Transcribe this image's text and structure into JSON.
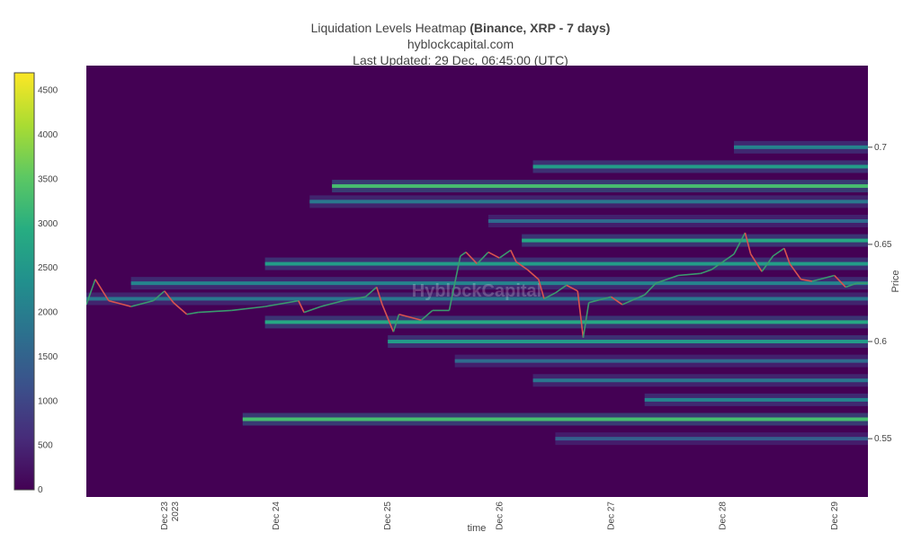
{
  "header": {
    "title_prefix": "Liquidation Levels Heatmap ",
    "title_bold": "(Binance, XRP - 7 days)",
    "subtitle": "hyblockcapital.com",
    "last_updated": "Last Updated: 29 Dec, 06:45:00 (UTC)"
  },
  "watermark": "HyblockCapital",
  "colors": {
    "background": "#440154",
    "colorscale": [
      "#440154",
      "#472c7a",
      "#3b518b",
      "#2c718e",
      "#21908d",
      "#27ad81",
      "#5cc863",
      "#aadc32",
      "#fde725"
    ],
    "price_up": "#3a9a6e",
    "price_down": "#d9534f"
  },
  "chart_data": {
    "type": "heatmap",
    "xlabel": "time",
    "ylabel": "Price",
    "x_ticks": [
      {
        "label": "Dec 23",
        "sub": "2023",
        "t": 0.7
      },
      {
        "label": "Dec 24",
        "sub": "",
        "t": 1.7
      },
      {
        "label": "Dec 25",
        "sub": "",
        "t": 2.7
      },
      {
        "label": "Dec 26",
        "sub": "",
        "t": 3.7
      },
      {
        "label": "Dec 27",
        "sub": "",
        "t": 4.7
      },
      {
        "label": "Dec 28",
        "sub": "",
        "t": 5.7
      },
      {
        "label": "Dec 29",
        "sub": "",
        "t": 6.7
      }
    ],
    "x_range": [
      0,
      7.0
    ],
    "y_ticks": [
      0.55,
      0.6,
      0.65,
      0.7
    ],
    "y_range": [
      0.52,
      0.742
    ],
    "colorbar": {
      "min": 0,
      "max": 4700,
      "ticks": [
        0,
        500,
        1000,
        1500,
        2000,
        2500,
        3000,
        3500,
        4000,
        4500
      ]
    },
    "price_series": [
      [
        0.0,
        0.619
      ],
      [
        0.08,
        0.632
      ],
      [
        0.2,
        0.621
      ],
      [
        0.4,
        0.618
      ],
      [
        0.6,
        0.621
      ],
      [
        0.7,
        0.626
      ],
      [
        0.78,
        0.62
      ],
      [
        0.9,
        0.614
      ],
      [
        1.0,
        0.615
      ],
      [
        1.3,
        0.616
      ],
      [
        1.6,
        0.618
      ],
      [
        1.9,
        0.621
      ],
      [
        1.95,
        0.615
      ],
      [
        2.1,
        0.618
      ],
      [
        2.3,
        0.621
      ],
      [
        2.5,
        0.623
      ],
      [
        2.6,
        0.628
      ],
      [
        2.65,
        0.619
      ],
      [
        2.75,
        0.605
      ],
      [
        2.8,
        0.614
      ],
      [
        3.0,
        0.611
      ],
      [
        3.1,
        0.616
      ],
      [
        3.25,
        0.616
      ],
      [
        3.3,
        0.63
      ],
      [
        3.35,
        0.644
      ],
      [
        3.4,
        0.646
      ],
      [
        3.5,
        0.64
      ],
      [
        3.6,
        0.646
      ],
      [
        3.7,
        0.643
      ],
      [
        3.8,
        0.647
      ],
      [
        3.85,
        0.641
      ],
      [
        3.95,
        0.637
      ],
      [
        4.05,
        0.632
      ],
      [
        4.1,
        0.622
      ],
      [
        4.2,
        0.625
      ],
      [
        4.3,
        0.629
      ],
      [
        4.4,
        0.626
      ],
      [
        4.45,
        0.602
      ],
      [
        4.5,
        0.62
      ],
      [
        4.7,
        0.623
      ],
      [
        4.8,
        0.619
      ],
      [
        5.0,
        0.624
      ],
      [
        5.1,
        0.63
      ],
      [
        5.3,
        0.634
      ],
      [
        5.5,
        0.635
      ],
      [
        5.6,
        0.637
      ],
      [
        5.7,
        0.641
      ],
      [
        5.8,
        0.645
      ],
      [
        5.9,
        0.656
      ],
      [
        5.95,
        0.645
      ],
      [
        6.05,
        0.636
      ],
      [
        6.15,
        0.644
      ],
      [
        6.25,
        0.648
      ],
      [
        6.3,
        0.64
      ],
      [
        6.4,
        0.632
      ],
      [
        6.5,
        0.631
      ],
      [
        6.7,
        0.634
      ],
      [
        6.8,
        0.628
      ],
      [
        6.9,
        0.63
      ],
      [
        7.0,
        0.63
      ]
    ],
    "liquidation_bands": [
      {
        "price": 0.68,
        "start": 2.2,
        "intensity": 0.7
      },
      {
        "price": 0.69,
        "start": 4.0,
        "intensity": 0.55
      },
      {
        "price": 0.7,
        "start": 5.8,
        "intensity": 0.45
      },
      {
        "price": 0.672,
        "start": 2.0,
        "intensity": 0.4
      },
      {
        "price": 0.662,
        "start": 3.6,
        "intensity": 0.35
      },
      {
        "price": 0.652,
        "start": 3.9,
        "intensity": 0.6
      },
      {
        "price": 0.64,
        "start": 1.6,
        "intensity": 0.55
      },
      {
        "price": 0.63,
        "start": 0.4,
        "intensity": 0.45
      },
      {
        "price": 0.622,
        "start": 0.0,
        "intensity": 0.4
      },
      {
        "price": 0.61,
        "start": 1.6,
        "intensity": 0.6
      },
      {
        "price": 0.6,
        "start": 2.7,
        "intensity": 0.55
      },
      {
        "price": 0.59,
        "start": 3.3,
        "intensity": 0.35
      },
      {
        "price": 0.58,
        "start": 4.0,
        "intensity": 0.4
      },
      {
        "price": 0.57,
        "start": 5.0,
        "intensity": 0.45
      },
      {
        "price": 0.56,
        "start": 1.4,
        "intensity": 0.7
      },
      {
        "price": 0.55,
        "start": 4.2,
        "intensity": 0.3
      }
    ]
  }
}
